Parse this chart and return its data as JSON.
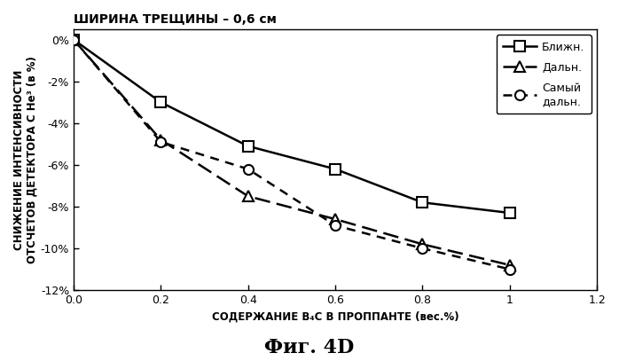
{
  "title": "ШИРИНА ТРЕЩИНЫ – 0,6 см",
  "xlabel": "СОДЕРЖАНИЕ B₄C В ПРОППАНТЕ (вес.%)",
  "ylabel": "СНИЖЕНИЕ ИНТЕНСИВНОСТИ\nОТСЧЕТОВ ДЕТЕКТОРА С He³ (в %)",
  "fig_label": "Фиг. 4D",
  "xlim": [
    0.0,
    1.2
  ],
  "ylim": [
    -12,
    0.5
  ],
  "xticks": [
    0.0,
    0.2,
    0.4,
    0.6,
    0.8,
    1.0,
    1.2
  ],
  "yticks": [
    0,
    -2,
    -4,
    -6,
    -8,
    -10,
    -12
  ],
  "ytick_labels": [
    "0%",
    "-2%",
    "-4%",
    "-6%",
    "-8%",
    "-10%",
    "-12%"
  ],
  "series": [
    {
      "label": "Ближн.",
      "x": [
        0.0,
        0.2,
        0.4,
        0.6,
        0.8,
        1.0
      ],
      "y": [
        0.0,
        -3.0,
        -5.1,
        -6.2,
        -7.8,
        -8.3
      ],
      "color": "#000000",
      "linestyle": "-",
      "linewidth": 1.8,
      "marker": "s",
      "markersize": 8,
      "markerfacecolor": "#ffffff",
      "markeredgecolor": "#000000",
      "markeredgewidth": 1.5
    },
    {
      "label": "Дальн.",
      "x": [
        0.0,
        0.2,
        0.4,
        0.6,
        0.8,
        1.0
      ],
      "y": [
        0.0,
        -4.8,
        -7.5,
        -8.6,
        -9.8,
        -10.8
      ],
      "color": "#000000",
      "linestyle": "--",
      "linewidth": 1.8,
      "marker": "^",
      "markersize": 8,
      "markerfacecolor": "#ffffff",
      "markeredgecolor": "#000000",
      "markeredgewidth": 1.5
    },
    {
      "label": "Самый\nдальн.",
      "x": [
        0.0,
        0.2,
        0.4,
        0.6,
        0.8,
        1.0
      ],
      "y": [
        0.0,
        -4.9,
        -6.2,
        -8.9,
        -10.0,
        -11.0
      ],
      "color": "#000000",
      "linestyle": "--",
      "linewidth": 1.8,
      "marker": "o",
      "markersize": 8,
      "markerfacecolor": "#ffffff",
      "markeredgecolor": "#000000",
      "markeredgewidth": 1.5
    }
  ],
  "background_color": "#ffffff",
  "title_fontsize": 10,
  "axis_label_fontsize": 8.5,
  "tick_fontsize": 9,
  "legend_fontsize": 9,
  "fig_label_fontsize": 16
}
